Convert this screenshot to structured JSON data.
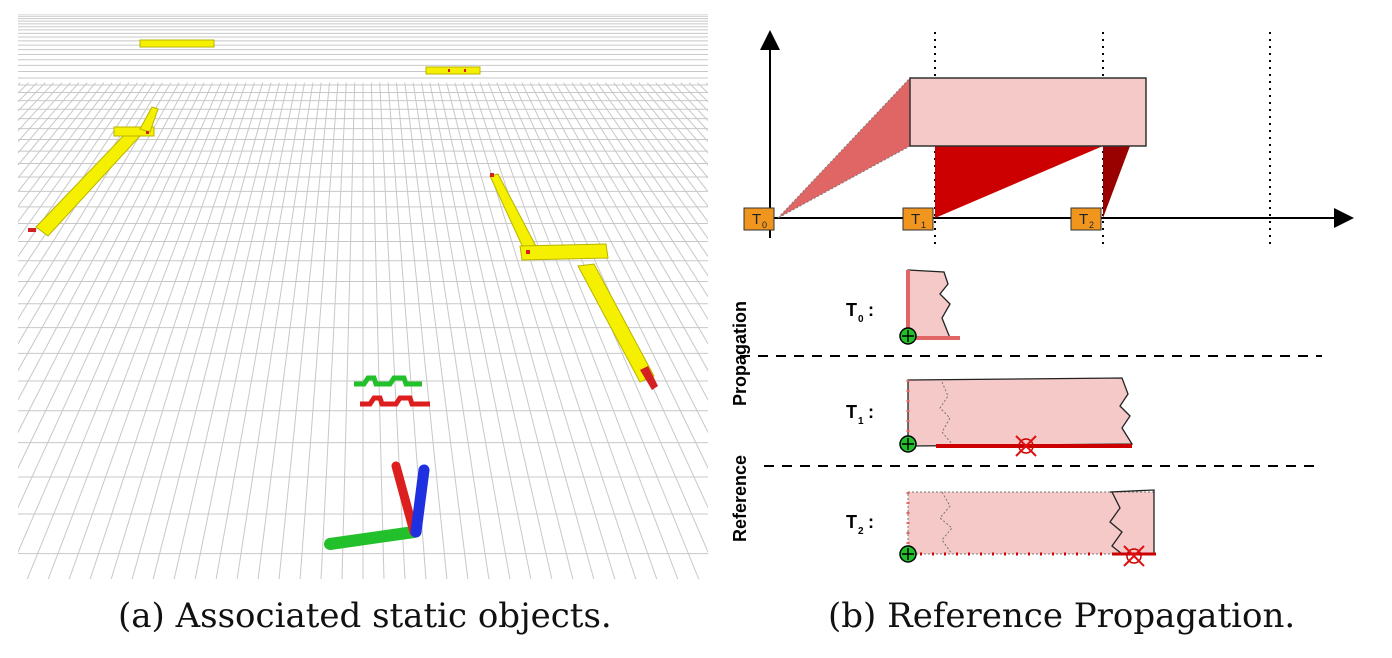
{
  "figure": {
    "panel_a": {
      "caption": "(a) Associated static objects."
    },
    "panel_b": {
      "caption": "(b) Reference Propagation.",
      "timeline_ticks": [
        "T0",
        "T1",
        "T2"
      ],
      "side_labels": {
        "left": "Reference",
        "right": "Propagation"
      },
      "rows": [
        {
          "label_main": "T",
          "label_sub": "0",
          "label_suffix": ":"
        },
        {
          "label_main": "T",
          "label_sub": "1",
          "label_suffix": ":"
        },
        {
          "label_main": "T",
          "label_sub": "2",
          "label_suffix": ":"
        }
      ],
      "colors": {
        "light_pink": "#f4c9c8",
        "mid_red": "#e06666",
        "red": "#cc0000",
        "dark_red": "#990000",
        "orange": "#f0961e",
        "green": "#22c02a"
      }
    }
  }
}
